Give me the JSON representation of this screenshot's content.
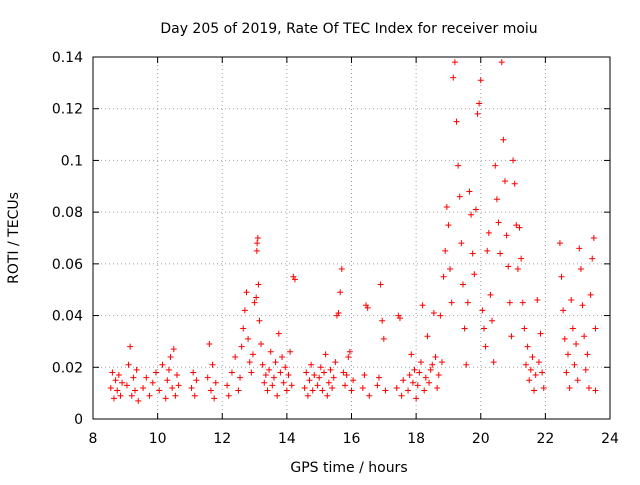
{
  "chart_data": {
    "type": "scatter",
    "title": "Day 205 of 2019, Rate Of TEC Index for receiver moiu",
    "xlabel": "GPS time / hours",
    "ylabel": "ROTI / TECUs",
    "xlim": [
      8,
      24
    ],
    "ylim": [
      0,
      0.14
    ],
    "x_ticks": [
      8,
      10,
      12,
      14,
      16,
      18,
      20,
      22,
      24
    ],
    "y_ticks": [
      0,
      0.02,
      0.04,
      0.06,
      0.08,
      0.1,
      0.12,
      0.14
    ],
    "x_tick_labels": [
      "8",
      "10",
      "12",
      "14",
      "16",
      "18",
      "20",
      "22",
      "24"
    ],
    "y_tick_labels": [
      "0",
      "0.02",
      "0.04",
      "0.06",
      "0.08",
      "0.1",
      "0.12",
      "0.14"
    ],
    "grid": true,
    "marker": "plus",
    "marker_color": "#ff0000",
    "series": [
      {
        "name": "ROTI",
        "points": [
          [
            8.55,
            0.012
          ],
          [
            8.6,
            0.018
          ],
          [
            8.65,
            0.008
          ],
          [
            8.7,
            0.015
          ],
          [
            8.75,
            0.011
          ],
          [
            8.8,
            0.017
          ],
          [
            8.85,
            0.009
          ],
          [
            8.9,
            0.014
          ],
          [
            9.05,
            0.013
          ],
          [
            9.1,
            0.021
          ],
          [
            9.15,
            0.028
          ],
          [
            9.2,
            0.009
          ],
          [
            9.25,
            0.016
          ],
          [
            9.3,
            0.011
          ],
          [
            9.35,
            0.019
          ],
          [
            9.4,
            0.007
          ],
          [
            9.55,
            0.012
          ],
          [
            9.65,
            0.016
          ],
          [
            9.75,
            0.009
          ],
          [
            9.85,
            0.014
          ],
          [
            9.95,
            0.018
          ],
          [
            10.05,
            0.011
          ],
          [
            10.15,
            0.021
          ],
          [
            10.25,
            0.008
          ],
          [
            10.3,
            0.015
          ],
          [
            10.35,
            0.019
          ],
          [
            10.4,
            0.024
          ],
          [
            10.45,
            0.012
          ],
          [
            10.5,
            0.027
          ],
          [
            10.55,
            0.009
          ],
          [
            10.6,
            0.017
          ],
          [
            10.65,
            0.013
          ],
          [
            11.05,
            0.012
          ],
          [
            11.1,
            0.018
          ],
          [
            11.15,
            0.009
          ],
          [
            11.2,
            0.015
          ],
          [
            11.55,
            0.016
          ],
          [
            11.6,
            0.029
          ],
          [
            11.65,
            0.011
          ],
          [
            11.7,
            0.021
          ],
          [
            11.75,
            0.008
          ],
          [
            11.8,
            0.014
          ],
          [
            12.15,
            0.013
          ],
          [
            12.2,
            0.009
          ],
          [
            12.3,
            0.018
          ],
          [
            12.4,
            0.024
          ],
          [
            12.5,
            0.011
          ],
          [
            12.55,
            0.016
          ],
          [
            12.6,
            0.028
          ],
          [
            12.65,
            0.035
          ],
          [
            12.7,
            0.042
          ],
          [
            12.75,
            0.049
          ],
          [
            12.8,
            0.031
          ],
          [
            12.85,
            0.022
          ],
          [
            12.9,
            0.018
          ],
          [
            12.95,
            0.025
          ],
          [
            13.0,
            0.045
          ],
          [
            13.05,
            0.047
          ],
          [
            13.07,
            0.065
          ],
          [
            13.08,
            0.068
          ],
          [
            13.1,
            0.07
          ],
          [
            13.12,
            0.052
          ],
          [
            13.15,
            0.038
          ],
          [
            13.2,
            0.029
          ],
          [
            13.25,
            0.021
          ],
          [
            13.3,
            0.014
          ],
          [
            13.35,
            0.017
          ],
          [
            13.4,
            0.011
          ],
          [
            13.45,
            0.019
          ],
          [
            13.5,
            0.026
          ],
          [
            13.55,
            0.013
          ],
          [
            13.6,
            0.016
          ],
          [
            13.65,
            0.022
          ],
          [
            13.7,
            0.009
          ],
          [
            13.75,
            0.033
          ],
          [
            13.8,
            0.018
          ],
          [
            13.85,
            0.024
          ],
          [
            13.9,
            0.014
          ],
          [
            13.95,
            0.02
          ],
          [
            14.0,
            0.011
          ],
          [
            14.05,
            0.017
          ],
          [
            14.1,
            0.026
          ],
          [
            14.15,
            0.013
          ],
          [
            14.2,
            0.055
          ],
          [
            14.25,
            0.054
          ],
          [
            14.55,
            0.012
          ],
          [
            14.6,
            0.018
          ],
          [
            14.65,
            0.009
          ],
          [
            14.7,
            0.015
          ],
          [
            14.75,
            0.021
          ],
          [
            14.8,
            0.011
          ],
          [
            14.85,
            0.017
          ],
          [
            14.95,
            0.013
          ],
          [
            15.0,
            0.016
          ],
          [
            15.05,
            0.02
          ],
          [
            15.1,
            0.011
          ],
          [
            15.15,
            0.018
          ],
          [
            15.2,
            0.025
          ],
          [
            15.25,
            0.009
          ],
          [
            15.3,
            0.014
          ],
          [
            15.35,
            0.019
          ],
          [
            15.4,
            0.012
          ],
          [
            15.45,
            0.016
          ],
          [
            15.5,
            0.022
          ],
          [
            15.55,
            0.04
          ],
          [
            15.6,
            0.041
          ],
          [
            15.65,
            0.049
          ],
          [
            15.7,
            0.058
          ],
          [
            15.75,
            0.018
          ],
          [
            15.8,
            0.013
          ],
          [
            15.85,
            0.017
          ],
          [
            15.9,
            0.024
          ],
          [
            15.95,
            0.026
          ],
          [
            16.0,
            0.011
          ],
          [
            16.05,
            0.015
          ],
          [
            16.35,
            0.012
          ],
          [
            16.4,
            0.017
          ],
          [
            16.45,
            0.044
          ],
          [
            16.5,
            0.043
          ],
          [
            16.55,
            0.009
          ],
          [
            16.8,
            0.013
          ],
          [
            16.85,
            0.016
          ],
          [
            16.9,
            0.052
          ],
          [
            16.95,
            0.038
          ],
          [
            17.0,
            0.031
          ],
          [
            17.05,
            0.011
          ],
          [
            17.4,
            0.012
          ],
          [
            17.45,
            0.04
          ],
          [
            17.5,
            0.039
          ],
          [
            17.55,
            0.009
          ],
          [
            17.6,
            0.015
          ],
          [
            17.75,
            0.011
          ],
          [
            17.8,
            0.017
          ],
          [
            17.85,
            0.025
          ],
          [
            17.9,
            0.014
          ],
          [
            17.95,
            0.019
          ],
          [
            18.0,
            0.008
          ],
          [
            18.05,
            0.013
          ],
          [
            18.1,
            0.018
          ],
          [
            18.15,
            0.022
          ],
          [
            18.2,
            0.044
          ],
          [
            18.25,
            0.011
          ],
          [
            18.3,
            0.016
          ],
          [
            18.35,
            0.032
          ],
          [
            18.4,
            0.014
          ],
          [
            18.45,
            0.019
          ],
          [
            18.5,
            0.021
          ],
          [
            18.55,
            0.041
          ],
          [
            18.6,
            0.024
          ],
          [
            18.65,
            0.012
          ],
          [
            18.7,
            0.017
          ],
          [
            18.75,
            0.04
          ],
          [
            18.8,
            0.022
          ],
          [
            18.85,
            0.055
          ],
          [
            18.9,
            0.065
          ],
          [
            18.95,
            0.082
          ],
          [
            19.0,
            0.075
          ],
          [
            19.05,
            0.058
          ],
          [
            19.1,
            0.045
          ],
          [
            19.15,
            0.132
          ],
          [
            19.2,
            0.138
          ],
          [
            19.25,
            0.115
          ],
          [
            19.3,
            0.098
          ],
          [
            19.35,
            0.086
          ],
          [
            19.4,
            0.068
          ],
          [
            19.45,
            0.052
          ],
          [
            19.5,
            0.035
          ],
          [
            19.55,
            0.021
          ],
          [
            19.6,
            0.045
          ],
          [
            19.65,
            0.088
          ],
          [
            19.7,
            0.079
          ],
          [
            19.75,
            0.064
          ],
          [
            19.8,
            0.056
          ],
          [
            19.85,
            0.081
          ],
          [
            19.9,
            0.118
          ],
          [
            19.95,
            0.122
          ],
          [
            20.0,
            0.131
          ],
          [
            20.05,
            0.042
          ],
          [
            20.1,
            0.035
          ],
          [
            20.15,
            0.028
          ],
          [
            20.2,
            0.065
          ],
          [
            20.25,
            0.072
          ],
          [
            20.3,
            0.048
          ],
          [
            20.35,
            0.038
          ],
          [
            20.4,
            0.022
          ],
          [
            20.45,
            0.098
          ],
          [
            20.5,
            0.085
          ],
          [
            20.55,
            0.076
          ],
          [
            20.6,
            0.064
          ],
          [
            20.65,
            0.138
          ],
          [
            20.7,
            0.108
          ],
          [
            20.75,
            0.092
          ],
          [
            20.8,
            0.071
          ],
          [
            20.85,
            0.059
          ],
          [
            20.9,
            0.045
          ],
          [
            20.95,
            0.032
          ],
          [
            21.0,
            0.1
          ],
          [
            21.05,
            0.091
          ],
          [
            21.1,
            0.075
          ],
          [
            21.15,
            0.058
          ],
          [
            21.2,
            0.074
          ],
          [
            21.25,
            0.062
          ],
          [
            21.3,
            0.045
          ],
          [
            21.35,
            0.035
          ],
          [
            21.4,
            0.021
          ],
          [
            21.45,
            0.028
          ],
          [
            21.5,
            0.015
          ],
          [
            21.55,
            0.019
          ],
          [
            21.6,
            0.024
          ],
          [
            21.65,
            0.011
          ],
          [
            21.7,
            0.017
          ],
          [
            21.75,
            0.046
          ],
          [
            21.8,
            0.022
          ],
          [
            21.85,
            0.033
          ],
          [
            21.9,
            0.018
          ],
          [
            21.95,
            0.012
          ],
          [
            22.45,
            0.068
          ],
          [
            22.5,
            0.055
          ],
          [
            22.55,
            0.042
          ],
          [
            22.6,
            0.031
          ],
          [
            22.65,
            0.018
          ],
          [
            22.7,
            0.025
          ],
          [
            22.75,
            0.012
          ],
          [
            22.8,
            0.046
          ],
          [
            22.85,
            0.035
          ],
          [
            22.9,
            0.021
          ],
          [
            22.95,
            0.029
          ],
          [
            23.0,
            0.015
          ],
          [
            23.05,
            0.066
          ],
          [
            23.1,
            0.058
          ],
          [
            23.15,
            0.044
          ],
          [
            23.2,
            0.032
          ],
          [
            23.25,
            0.019
          ],
          [
            23.3,
            0.025
          ],
          [
            23.35,
            0.012
          ],
          [
            23.4,
            0.048
          ],
          [
            23.45,
            0.062
          ],
          [
            23.5,
            0.07
          ],
          [
            23.55,
            0.035
          ],
          [
            23.55,
            0.011
          ]
        ]
      }
    ]
  }
}
